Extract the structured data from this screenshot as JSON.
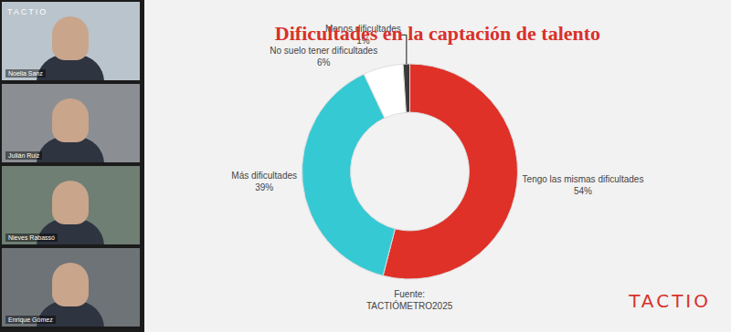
{
  "chart_data": {
    "type": "donut",
    "title": "Dificultades en la captación de talento",
    "categories": [
      "Tengo las mismas dificultades",
      "Más dificultades",
      "No suelo tener dificultades",
      "Menos dificultades"
    ],
    "values": [
      54,
      39,
      6,
      1
    ],
    "value_labels": [
      "54%",
      "39%",
      "6%",
      "1%"
    ],
    "colors": [
      "#df3128",
      "#35c9d4",
      "#ffffff",
      "#3a3a3a"
    ],
    "data_labels": true,
    "source": [
      "Fuente:",
      "TACTIÓMETRO2025"
    ]
  },
  "screen": {
    "logo": "TACTIO",
    "participants": [
      "Noelia Sanz",
      "Julián Ruiz",
      "Nieves Rabassó",
      "Enrique Gómez"
    ],
    "brand": "TACTIO"
  }
}
